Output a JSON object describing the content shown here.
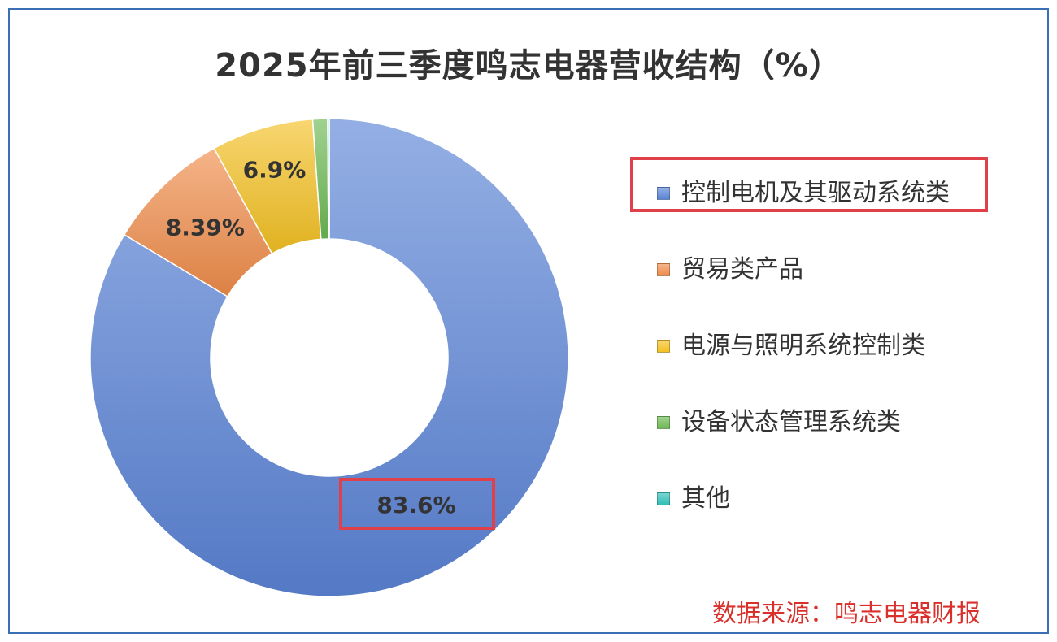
{
  "chart_data": {
    "type": "pie",
    "title": "2025年前三季度鸣志电器营收结构（%）",
    "categories": [
      "控制电机及其驱动系统类",
      "贸易类产品",
      "电源与照明系统控制类",
      "设备状态管理系统类",
      "其他"
    ],
    "values": [
      83.6,
      8.39,
      6.9,
      1.0,
      0.11
    ],
    "data_labels": [
      "83.6%",
      "8.39%",
      "6.9%",
      "",
      ""
    ],
    "colors": [
      "#5b84d6",
      "#ef8c4a",
      "#f4c023",
      "#6db954",
      "#2fbfb5"
    ],
    "donut": true,
    "legend_position": "right",
    "highlighted": [
      "控制电机及其驱动系统类",
      "83.6%"
    ]
  },
  "source_note": "数据来源：鸣志电器财报"
}
